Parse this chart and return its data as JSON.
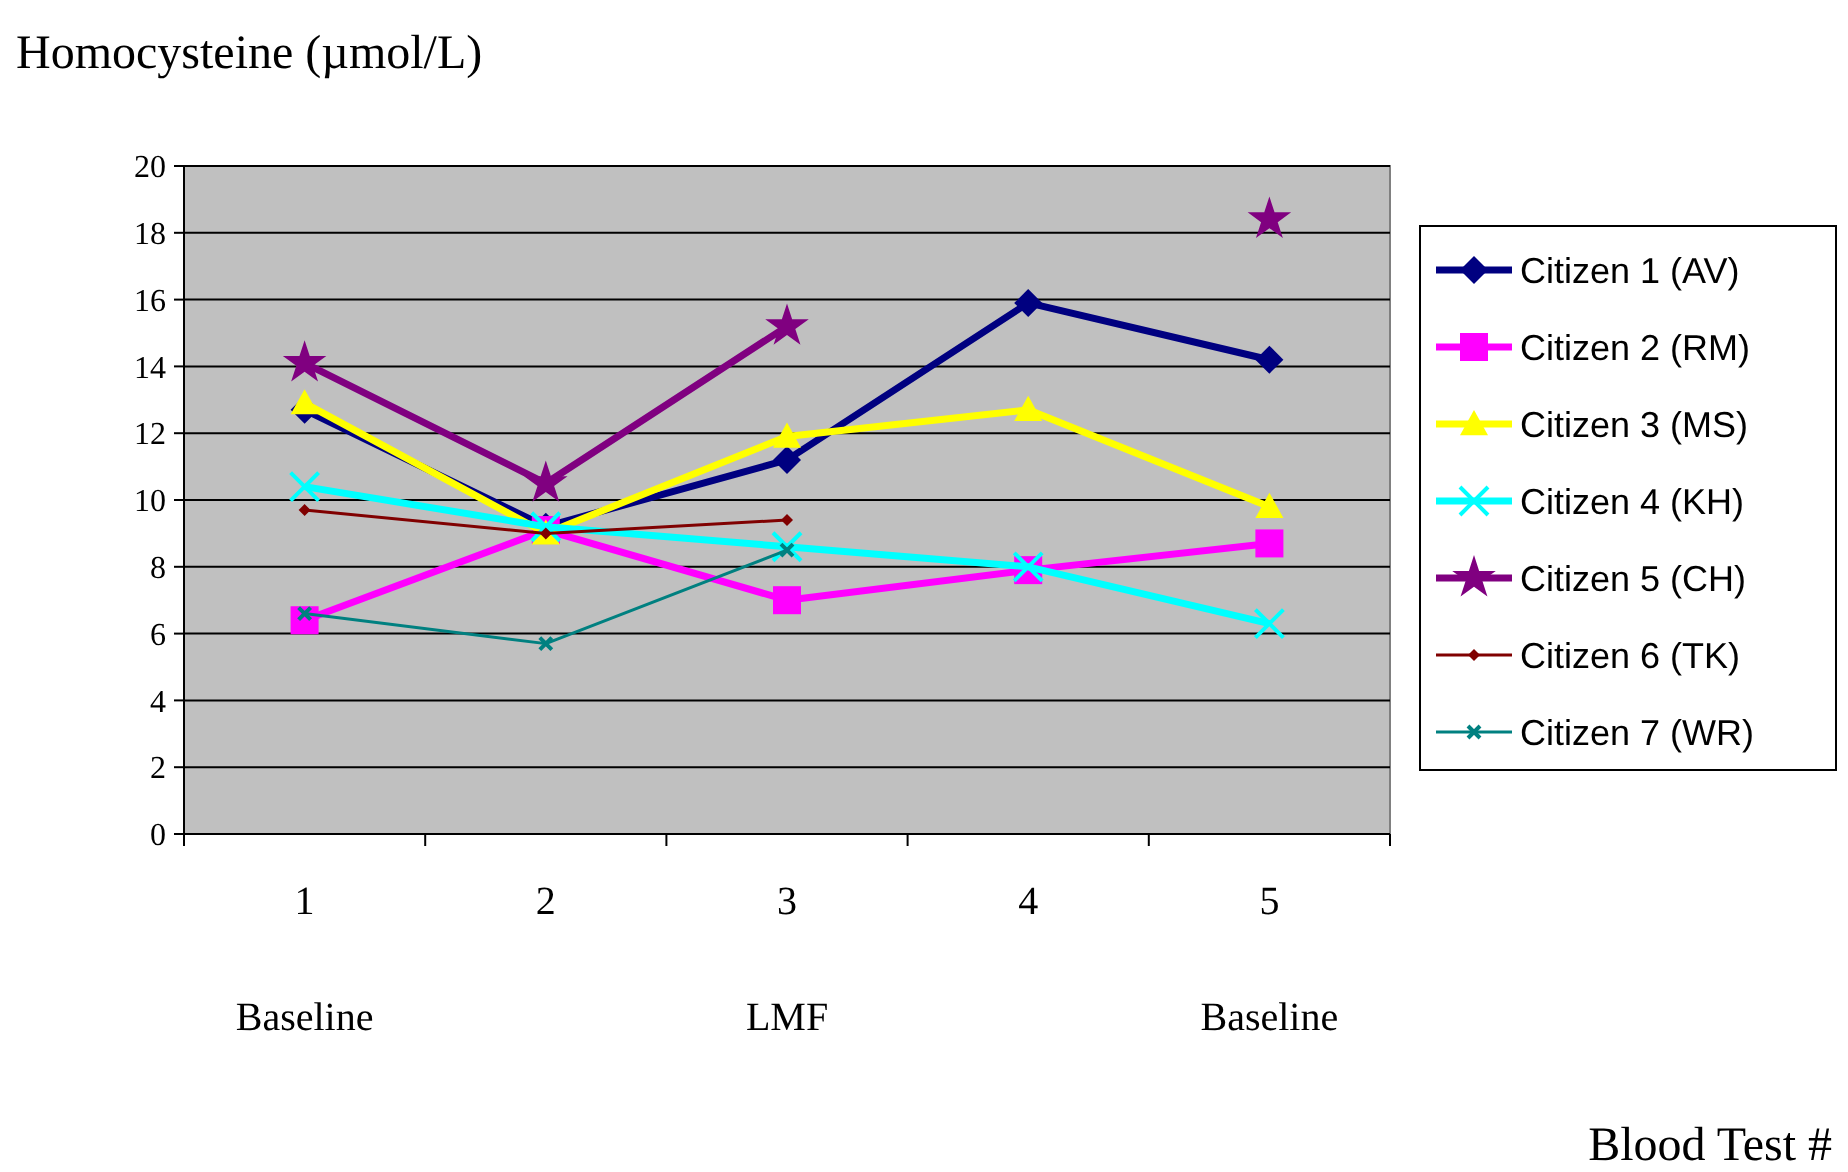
{
  "chart_data": {
    "type": "line",
    "ylabel": "Homocysteine (µmol/L)",
    "annotations": [
      "Blood Test #"
    ],
    "categories": [
      "1\nBaseline",
      "2",
      "3\nLMF",
      "4",
      "5\nBaseline"
    ],
    "ylim": [
      0,
      20
    ],
    "yticks": [
      0,
      2,
      4,
      6,
      8,
      10,
      12,
      14,
      16,
      18,
      20
    ],
    "grid": "y",
    "legend": "right",
    "series": [
      {
        "name": "Citizen 1 (AV)",
        "color": "#000080",
        "marker": "diamond",
        "values": [
          12.7,
          9.2,
          11.2,
          15.9,
          14.2
        ]
      },
      {
        "name": "Citizen 2 (RM)",
        "color": "#ff00ff",
        "marker": "square",
        "values": [
          6.4,
          9.1,
          7.0,
          7.9,
          8.7
        ]
      },
      {
        "name": "Citizen 3 (MS)",
        "color": "#ffff00",
        "marker": "triangle",
        "values": [
          12.9,
          9.0,
          11.9,
          12.7,
          9.8
        ]
      },
      {
        "name": "Citizen 4 (KH)",
        "color": "#00ffff",
        "marker": "cross",
        "values": [
          10.4,
          9.2,
          8.6,
          8.0,
          6.3
        ]
      },
      {
        "name": "Citizen 5 (CH)",
        "color": "#800080",
        "marker": "star",
        "values": [
          14.1,
          10.5,
          15.2,
          null,
          18.4
        ]
      },
      {
        "name": "Citizen 6 (TK)",
        "color": "#800000",
        "marker": "diamond",
        "values": [
          9.7,
          9.0,
          9.4,
          null,
          null
        ]
      },
      {
        "name": "Citizen 7 (WR)",
        "color": "#008080",
        "marker": "cross",
        "values": [
          6.6,
          5.7,
          8.5,
          null,
          null
        ]
      }
    ]
  }
}
